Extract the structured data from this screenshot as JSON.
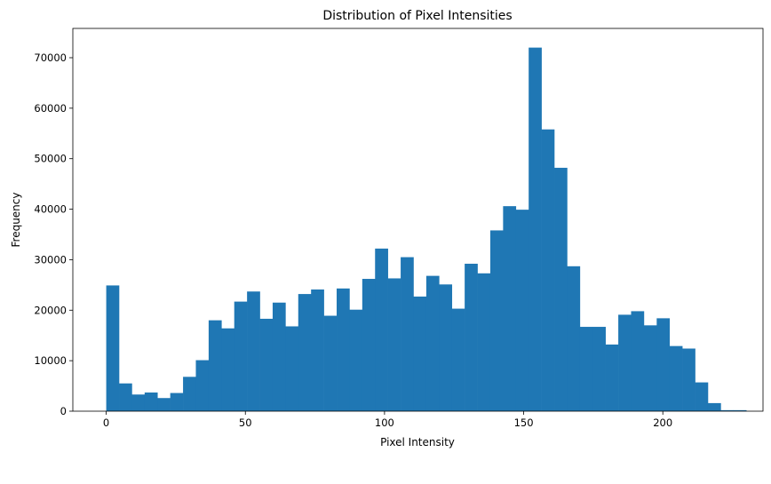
{
  "chart_data": {
    "type": "bar",
    "title": "Distribution of Pixel Intensities",
    "xlabel": "Pixel Intensity",
    "ylabel": "Frequency",
    "xlim": [
      -12,
      236
    ],
    "ylim": [
      0,
      75800
    ],
    "xticks": [
      0,
      50,
      100,
      150,
      200
    ],
    "yticks": [
      0,
      10000,
      20000,
      30000,
      40000,
      50000,
      60000,
      70000
    ],
    "bin_start": 0,
    "bin_width": 4.6,
    "values": [
      24900,
      5500,
      3300,
      3700,
      2600,
      3600,
      6800,
      10100,
      18000,
      16400,
      21700,
      23700,
      18300,
      21500,
      16800,
      23200,
      24100,
      18900,
      24300,
      20100,
      26200,
      32200,
      26300,
      30500,
      22700,
      26800,
      25100,
      20300,
      29200,
      27300,
      35800,
      40600,
      39900,
      72000,
      55800,
      48200,
      28700,
      16700,
      16700,
      13200,
      19100,
      19800,
      17000,
      18400,
      12900,
      12400,
      5700,
      1600,
      200,
      200
    ],
    "bar_color": "#1f77b4",
    "grid": false
  }
}
